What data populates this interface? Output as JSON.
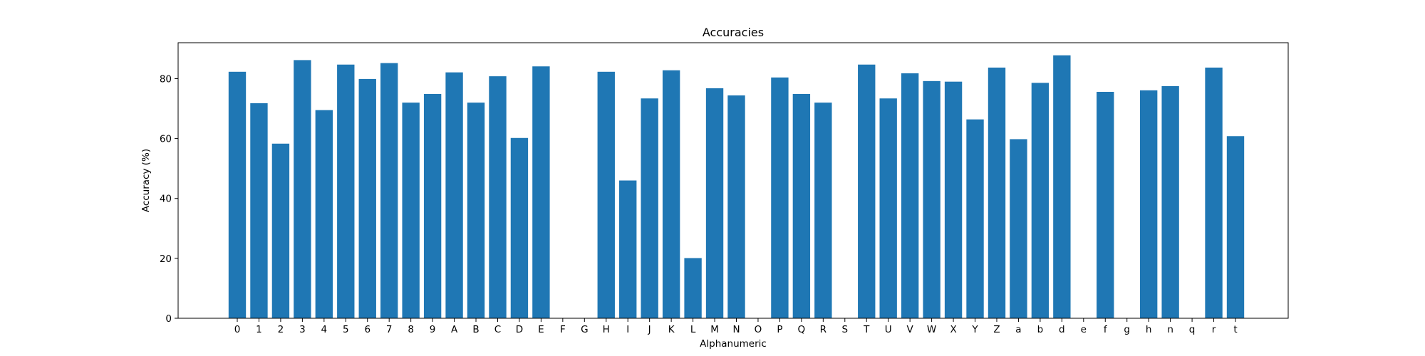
{
  "chart_data": {
    "type": "bar",
    "title": "Accuracies",
    "xlabel": "Alphanumeric",
    "ylabel": "Accuracy (%)",
    "categories": [
      "0",
      "1",
      "2",
      "3",
      "4",
      "5",
      "6",
      "7",
      "8",
      "9",
      "A",
      "B",
      "C",
      "D",
      "E",
      "F",
      "G",
      "H",
      "I",
      "J",
      "K",
      "L",
      "M",
      "N",
      "O",
      "P",
      "Q",
      "R",
      "S",
      "T",
      "U",
      "V",
      "W",
      "X",
      "Y",
      "Z",
      "a",
      "b",
      "d",
      "e",
      "f",
      "g",
      "h",
      "n",
      "q",
      "r",
      "t"
    ],
    "values": [
      82.3,
      71.8,
      58.3,
      86.2,
      69.5,
      84.7,
      79.9,
      85.2,
      72.0,
      74.9,
      82.1,
      72.0,
      80.8,
      60.2,
      84.1,
      0,
      0,
      82.3,
      46.0,
      73.4,
      82.8,
      20.1,
      76.8,
      74.4,
      0,
      80.4,
      74.9,
      72.0,
      0,
      84.7,
      73.4,
      81.8,
      79.2,
      79.0,
      66.4,
      83.7,
      59.8,
      78.6,
      87.8,
      0,
      75.6,
      0,
      76.1,
      77.5,
      0,
      83.7,
      60.8
    ],
    "yticks": [
      0,
      20,
      40,
      60,
      80
    ],
    "ylim": [
      0,
      92
    ],
    "bar_color": "#1f77b4",
    "grid": false,
    "legend": false
  }
}
